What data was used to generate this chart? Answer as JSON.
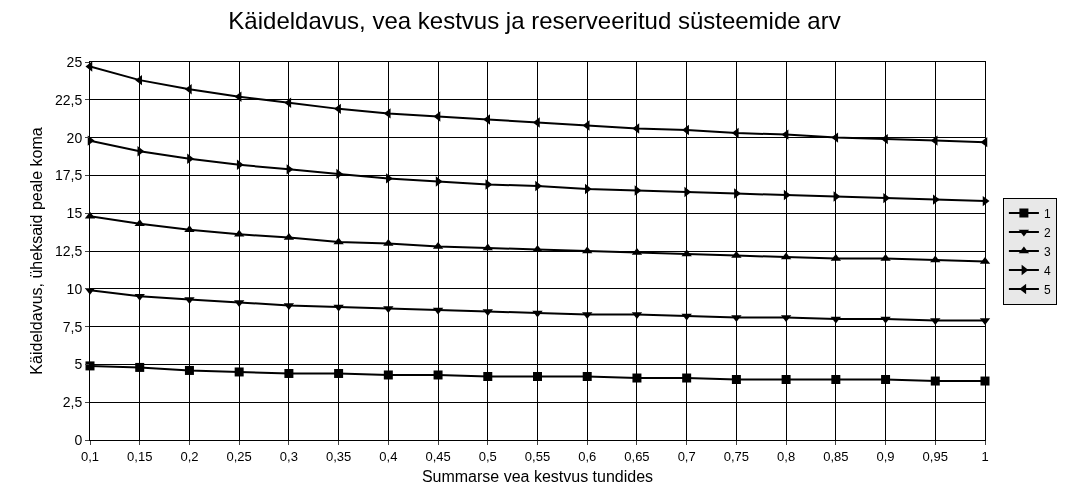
{
  "chart_data": {
    "type": "line",
    "title": "Käideldavus, vea kestvus ja reserveeritud süsteemide arv",
    "xlabel": "Summarse vea kestvus tundides",
    "ylabel": "Käideldavus, üheksaid peale koma",
    "x": [
      0.1,
      0.15,
      0.2,
      0.25,
      0.3,
      0.35,
      0.4,
      0.45,
      0.5,
      0.55,
      0.6,
      0.65,
      0.7,
      0.75,
      0.8,
      0.85,
      0.9,
      0.95,
      1
    ],
    "xlim": [
      0.1,
      1
    ],
    "xticks": [
      {
        "value": 0.1,
        "label": "0,1"
      },
      {
        "value": 0.15,
        "label": "0,15"
      },
      {
        "value": 0.2,
        "label": "0,2"
      },
      {
        "value": 0.25,
        "label": "0,25"
      },
      {
        "value": 0.3,
        "label": "0,3"
      },
      {
        "value": 0.35,
        "label": "0,35"
      },
      {
        "value": 0.4,
        "label": "0,4"
      },
      {
        "value": 0.45,
        "label": "0,45"
      },
      {
        "value": 0.5,
        "label": "0,5"
      },
      {
        "value": 0.55,
        "label": "0,55"
      },
      {
        "value": 0.6,
        "label": "0,6"
      },
      {
        "value": 0.65,
        "label": "0,65"
      },
      {
        "value": 0.7,
        "label": "0,7"
      },
      {
        "value": 0.75,
        "label": "0,75"
      },
      {
        "value": 0.8,
        "label": "0,8"
      },
      {
        "value": 0.85,
        "label": "0,85"
      },
      {
        "value": 0.9,
        "label": "0,9"
      },
      {
        "value": 0.95,
        "label": "0,95"
      },
      {
        "value": 1,
        "label": "1"
      }
    ],
    "ylim": [
      0,
      25
    ],
    "yticks": [
      0,
      {
        "value": 2.5,
        "label": "2,5"
      },
      5,
      {
        "value": 7.5,
        "label": "7,5"
      },
      10,
      {
        "value": 12.5,
        "label": "12,5"
      },
      15,
      {
        "value": 17.5,
        "label": "17,5"
      },
      20,
      {
        "value": 22.5,
        "label": "22,5"
      },
      25
    ],
    "grid": true,
    "legend": "right",
    "line_style": "solid",
    "series": [
      {
        "name": "1",
        "color": "#000000",
        "marker": "square",
        "values": [
          4.9,
          4.8,
          4.6,
          4.5,
          4.4,
          4.4,
          4.3,
          4.3,
          4.2,
          4.2,
          4.2,
          4.1,
          4.1,
          4.0,
          4.0,
          4.0,
          4.0,
          3.9,
          3.9
        ]
      },
      {
        "name": "2",
        "color": "#000000",
        "marker": "triangle-down",
        "values": [
          9.9,
          9.5,
          9.3,
          9.1,
          8.9,
          8.8,
          8.7,
          8.6,
          8.5,
          8.4,
          8.3,
          8.3,
          8.2,
          8.1,
          8.1,
          8.0,
          8.0,
          7.9,
          7.9
        ]
      },
      {
        "name": "3",
        "color": "#000000",
        "marker": "triangle-up",
        "values": [
          14.8,
          14.3,
          13.9,
          13.6,
          13.4,
          13.1,
          13.0,
          12.8,
          12.7,
          12.6,
          12.5,
          12.4,
          12.3,
          12.2,
          12.1,
          12.0,
          12.0,
          11.9,
          11.8
        ]
      },
      {
        "name": "4",
        "color": "#000000",
        "marker": "triangle-right",
        "values": [
          19.8,
          19.1,
          18.6,
          18.2,
          17.9,
          17.6,
          17.3,
          17.1,
          16.9,
          16.8,
          16.6,
          16.5,
          16.4,
          16.3,
          16.2,
          16.1,
          16.0,
          15.9,
          15.8
        ]
      },
      {
        "name": "5",
        "color": "#000000",
        "marker": "triangle-left",
        "values": [
          24.7,
          23.8,
          23.2,
          22.7,
          22.3,
          21.9,
          21.6,
          21.4,
          21.2,
          21.0,
          20.8,
          20.6,
          20.5,
          20.3,
          20.2,
          20.0,
          19.9,
          19.8,
          19.7
        ]
      }
    ]
  }
}
